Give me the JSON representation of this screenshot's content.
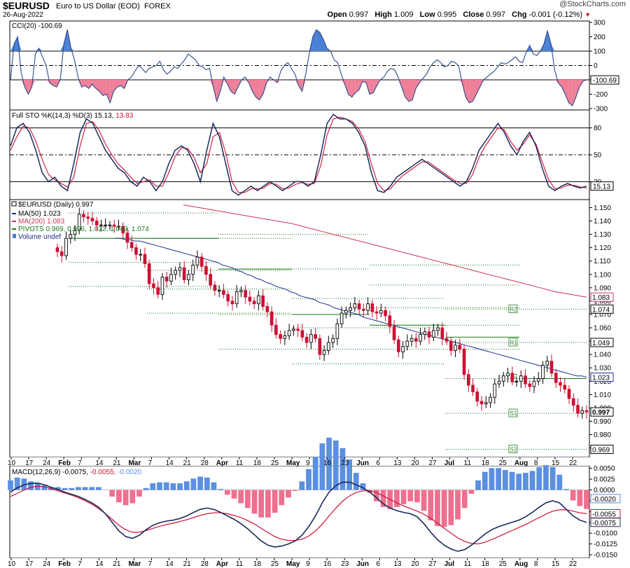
{
  "header": {
    "symbol": "$EURUSD",
    "title": "Euro to US Dollar (EOD)",
    "exchange": "FOREX",
    "date": "26-Aug-2022",
    "brand": "@StockCharts.com",
    "open_label": "Open",
    "open": "0.997",
    "high_label": "High",
    "high": "1.009",
    "low_label": "Low",
    "low": "0.995",
    "close_label": "Close",
    "close": "0.997",
    "chg_label": "Chg",
    "chg": "-0.001 (-0.12%)"
  },
  "colors": {
    "up": "#000000",
    "down": "#cc1133",
    "ma50": "#1f2f8f",
    "ma200": "#cc3355",
    "pivot": "#1e7a1e",
    "cci_pos": "#4a7fd4",
    "cci_neg": "#ef7f99",
    "hist_pos": "#5b8fe0",
    "hist_neg": "#ef6f8f",
    "macd": "#1b2a5a",
    "signal": "#cc1133"
  },
  "chart_data": [
    {
      "type": "line",
      "panel": "CCI",
      "legend": "CCI(20) -100.69",
      "yticks": [
        300,
        200,
        100,
        0,
        -100,
        -200,
        -300
      ],
      "ylim": [
        -310,
        310
      ],
      "levels": [
        100,
        0,
        -100
      ],
      "last_value_label": "-100.69",
      "values": [
        -100,
        150,
        200,
        -50,
        -150,
        -200,
        -150,
        80,
        120,
        60,
        0,
        -120,
        -140,
        -150,
        -100,
        150,
        250,
        120,
        40,
        -80,
        -150,
        -140,
        -160,
        -130,
        -160,
        -180,
        -210,
        -200,
        -260,
        -180,
        -150,
        -140,
        -160,
        -100,
        -80,
        -40,
        0,
        -20,
        -50,
        -20,
        -10,
        0,
        30,
        -30,
        -60,
        -40,
        -10,
        -20,
        10,
        40,
        80,
        60,
        40,
        0,
        -10,
        -30,
        -20,
        -150,
        -250,
        -180,
        -80,
        -130,
        -180,
        -200,
        -150,
        -100,
        -80,
        -120,
        -180,
        -220,
        -240,
        -200,
        -120,
        -80,
        -100,
        -120,
        -40,
        0,
        20,
        -20,
        -60,
        -140,
        -180,
        -60,
        80,
        200,
        250,
        230,
        180,
        120,
        100,
        40,
        20,
        -60,
        -130,
        -200,
        -220,
        -190,
        -170,
        -110,
        -120,
        -200,
        -190,
        -140,
        -100,
        -80,
        -40,
        -20,
        -30,
        -80,
        -150,
        -220,
        -250,
        -240,
        -160,
        -120,
        -90,
        -60,
        -10,
        20,
        40,
        20,
        -10,
        0,
        30,
        20,
        0,
        -120,
        -220,
        -260,
        -250,
        -200,
        -150,
        -100,
        -80,
        -60,
        -40,
        -10,
        20,
        10,
        20,
        40,
        60,
        30,
        20,
        90,
        140,
        80,
        70,
        100,
        150,
        240,
        150,
        -30,
        -120,
        -150,
        -200,
        -260,
        -280,
        -220,
        -150,
        -110,
        -100
      ]
    },
    {
      "type": "line",
      "panel": "Full STO",
      "legend_k": "Full STO %K(14,3)",
      "legend_d": "%D(3)",
      "legend_k_value": "15.13",
      "legend_d_value": "13.83",
      "yticks": [
        80,
        50,
        20
      ],
      "ylim": [
        0,
        100
      ],
      "levels": [
        80,
        50,
        20
      ],
      "last_value_label": "15.13",
      "k": [
        60,
        80,
        85,
        75,
        55,
        30,
        20,
        25,
        15,
        10,
        40,
        75,
        90,
        85,
        70,
        55,
        45,
        35,
        30,
        20,
        15,
        25,
        20,
        10,
        20,
        40,
        55,
        60,
        55,
        40,
        20,
        55,
        85,
        70,
        40,
        10,
        5,
        10,
        15,
        10,
        15,
        20,
        15,
        10,
        15,
        20,
        20,
        15,
        20,
        50,
        85,
        95,
        90,
        90,
        85,
        75,
        60,
        30,
        10,
        8,
        15,
        25,
        30,
        35,
        40,
        45,
        40,
        35,
        30,
        25,
        20,
        15,
        20,
        35,
        55,
        65,
        75,
        85,
        75,
        60,
        50,
        65,
        75,
        60,
        35,
        15,
        10,
        15,
        18,
        15,
        13,
        15
      ],
      "d": [
        55,
        70,
        82,
        80,
        65,
        45,
        28,
        22,
        18,
        14,
        25,
        60,
        85,
        87,
        77,
        62,
        50,
        40,
        33,
        25,
        18,
        20,
        22,
        15,
        15,
        30,
        48,
        58,
        57,
        47,
        30,
        40,
        70,
        75,
        52,
        20,
        8,
        8,
        12,
        12,
        13,
        18,
        17,
        12,
        13,
        17,
        19,
        17,
        18,
        38,
        72,
        90,
        92,
        90,
        87,
        79,
        65,
        40,
        18,
        10,
        12,
        20,
        27,
        32,
        37,
        42,
        42,
        37,
        32,
        27,
        22,
        18,
        18,
        28,
        47,
        60,
        70,
        80,
        78,
        65,
        55,
        62,
        72,
        62,
        42,
        22,
        12,
        13,
        16,
        16,
        14,
        13
      ]
    },
    {
      "type": "candlestick",
      "panel": "Price",
      "legend": "$EURUSD (Daily) 0.997",
      "ma50_label": "MA(50) 1.023",
      "ma200_label": "MA(200) 1.083",
      "pivots_label": "PIVOTS 0.969, 0.996, 1.022, 1.049, 1.074",
      "volume_label": "Volume undef",
      "yticks": [
        1.15,
        1.14,
        1.13,
        1.12,
        1.11,
        1.1,
        1.09,
        1.08,
        1.07,
        1.06,
        1.05,
        1.04,
        1.03,
        1.02,
        1.01,
        1.0,
        0.99,
        0.98,
        0.97
      ],
      "ytick_labels": [
        "1.150",
        "1.140",
        "1.130",
        "1.120",
        "1.110",
        "1.100",
        "1.090",
        "1.080",
        "1.070",
        "1.060",
        "1.050",
        "1.040",
        "1.030",
        "1.020",
        "1.010",
        "1.000",
        "0.990",
        "0.980",
        "0.970"
      ],
      "ylim": [
        0.963,
        1.156
      ],
      "last_labels": [
        {
          "text": "1.083",
          "value": 1.083,
          "kind": "ma200"
        },
        {
          "text": "1.074",
          "value": 1.074,
          "kind": "plain"
        },
        {
          "text": "1.049",
          "value": 1.049,
          "kind": "plain"
        },
        {
          "text": "1.023",
          "value": 1.023,
          "kind": "ma50"
        },
        {
          "text": "0.997",
          "value": 0.997,
          "kind": "bold"
        },
        {
          "text": "0.969",
          "value": 0.969,
          "kind": "plain"
        }
      ],
      "pivot_levels": [
        {
          "name": "R2",
          "value": 1.074
        },
        {
          "name": "R1",
          "value": 1.049
        },
        {
          "name": "P",
          "value": 1.022
        },
        {
          "name": "S1",
          "value": 0.996
        },
        {
          "name": "S2",
          "value": 0.969
        }
      ],
      "close": [
        1.117,
        1.114,
        1.127,
        1.13,
        1.133,
        1.145,
        1.143,
        1.142,
        1.14,
        1.137,
        1.137,
        1.137,
        1.137,
        1.136,
        1.136,
        1.131,
        1.124,
        1.12,
        1.115,
        1.115,
        1.108,
        1.093,
        1.09,
        1.085,
        1.098,
        1.095,
        1.1,
        1.103,
        1.105,
        1.096,
        1.1,
        1.107,
        1.113,
        1.106,
        1.1,
        1.092,
        1.088,
        1.088,
        1.085,
        1.08,
        1.078,
        1.087,
        1.088,
        1.083,
        1.08,
        1.078,
        1.084,
        1.076,
        1.072,
        1.062,
        1.055,
        1.052,
        1.054,
        1.058,
        1.059,
        1.058,
        1.053,
        1.049,
        1.055,
        1.052,
        1.04,
        1.043,
        1.049,
        1.052,
        1.063,
        1.071,
        1.073,
        1.075,
        1.078,
        1.074,
        1.073,
        1.078,
        1.072,
        1.071,
        1.073,
        1.069,
        1.061,
        1.051,
        1.042,
        1.046,
        1.05,
        1.052,
        1.05,
        1.055,
        1.057,
        1.053,
        1.058,
        1.06,
        1.052,
        1.05,
        1.043,
        1.047,
        1.044,
        1.025,
        1.017,
        1.012,
        1.005,
        1.003,
        1.004,
        1.008,
        1.018,
        1.02,
        1.024,
        1.026,
        1.02,
        1.02,
        1.024,
        1.018,
        1.016,
        1.02,
        1.022,
        1.032,
        1.035,
        1.026,
        1.019,
        1.017,
        1.014,
        1.007,
        1.002,
        0.996,
        0.998,
        0.997
      ],
      "ma50": [
        1.127,
        1.127,
        1.126,
        1.126,
        1.125,
        1.125,
        1.124,
        1.123,
        1.122,
        1.121,
        1.12,
        1.119,
        1.118,
        1.117,
        1.116,
        1.115,
        1.114,
        1.113,
        1.112,
        1.111,
        1.11,
        1.109,
        1.107,
        1.106,
        1.105,
        1.103,
        1.102,
        1.1,
        1.099,
        1.097,
        1.096,
        1.094,
        1.093,
        1.091,
        1.09,
        1.089,
        1.087,
        1.086,
        1.084,
        1.083,
        1.082,
        1.081,
        1.079,
        1.078,
        1.077,
        1.075,
        1.074,
        1.073,
        1.072,
        1.071,
        1.07,
        1.068,
        1.067,
        1.066,
        1.065,
        1.064,
        1.063,
        1.062,
        1.061,
        1.06,
        1.059,
        1.058,
        1.057,
        1.056,
        1.055,
        1.054,
        1.053,
        1.052,
        1.051,
        1.05,
        1.049,
        1.048,
        1.047,
        1.046,
        1.045,
        1.044,
        1.043,
        1.042,
        1.041,
        1.04,
        1.039,
        1.038,
        1.037,
        1.036,
        1.035,
        1.034,
        1.033,
        1.032,
        1.031,
        1.03,
        1.029,
        1.028,
        1.027,
        1.026,
        1.025,
        1.024,
        1.024,
        1.023
      ],
      "ma200": [
        1.152,
        1.15,
        1.148,
        1.146,
        1.144,
        1.142,
        1.14,
        1.138,
        1.135,
        1.132,
        1.129,
        1.126,
        1.123,
        1.12,
        1.117,
        1.114,
        1.111,
        1.108,
        1.105,
        1.102,
        1.099,
        1.096,
        1.093,
        1.09,
        1.087,
        1.085,
        1.083
      ]
    },
    {
      "type": "line",
      "panel": "MACD",
      "legend_macd": "MACD(12,26,9) -0.0075",
      "legend_signal": "-0.0055",
      "legend_hist": "-0.0020",
      "yticks": [
        0.005,
        0.0025,
        0.0,
        -0.0025,
        -0.005,
        -0.0075,
        -0.01,
        -0.0125,
        -0.015
      ],
      "ytick_labels": [
        "0.0050",
        "0.0025",
        "0.0000",
        "-0.0025",
        "-0.0050",
        "-0.0075",
        "-0.0100",
        "-0.0125",
        "-0.0150"
      ],
      "ylim": [
        -0.0158,
        0.0056
      ],
      "last_labels": [
        {
          "text": "-0.0020",
          "value": -0.002,
          "kind": "hist"
        },
        {
          "text": "-0.0055",
          "value": -0.0055,
          "kind": "signal"
        },
        {
          "text": "-0.0075",
          "value": -0.0075,
          "kind": "macd"
        }
      ],
      "macd": [
        -0.0005,
        0.0005,
        0.0012,
        0.0015,
        0.0016,
        0.0012,
        0.0006,
        0.0001,
        -0.0005,
        -0.001,
        -0.0015,
        -0.0022,
        -0.003,
        -0.004,
        -0.0055,
        -0.0075,
        -0.0095,
        -0.0108,
        -0.0112,
        -0.0105,
        -0.0092,
        -0.0082,
        -0.0076,
        -0.0072,
        -0.007,
        -0.0066,
        -0.006,
        -0.0052,
        -0.0045,
        -0.0042,
        -0.0045,
        -0.0052,
        -0.006,
        -0.0068,
        -0.0078,
        -0.009,
        -0.0104,
        -0.0118,
        -0.0128,
        -0.0132,
        -0.013,
        -0.0125,
        -0.0118,
        -0.0105,
        -0.0085,
        -0.006,
        -0.003,
        -0.0005,
        0.001,
        0.0018,
        0.0018,
        0.0012,
        0.0005,
        -0.0005,
        -0.0018,
        -0.0032,
        -0.0042,
        -0.0048,
        -0.0052,
        -0.0055,
        -0.0062,
        -0.0078,
        -0.0098,
        -0.0115,
        -0.0128,
        -0.0137,
        -0.0142,
        -0.0138,
        -0.0128,
        -0.0115,
        -0.0102,
        -0.0092,
        -0.0085,
        -0.008,
        -0.0075,
        -0.007,
        -0.0062,
        -0.0052,
        -0.004,
        -0.003,
        -0.0025,
        -0.003,
        -0.0045,
        -0.006,
        -0.007,
        -0.0075
      ],
      "signal": [
        -0.0015,
        -0.0008,
        0.0,
        0.0006,
        0.0009,
        0.0007,
        0.0003,
        -0.0002,
        -0.0007,
        -0.0012,
        -0.0018,
        -0.0025,
        -0.0033,
        -0.0043,
        -0.0055,
        -0.0068,
        -0.0082,
        -0.0092,
        -0.0098,
        -0.0098,
        -0.0094,
        -0.0089,
        -0.0084,
        -0.008,
        -0.0077,
        -0.0073,
        -0.0069,
        -0.0064,
        -0.0059,
        -0.0055,
        -0.0053,
        -0.0053,
        -0.0055,
        -0.0059,
        -0.0064,
        -0.0071,
        -0.0079,
        -0.0089,
        -0.0099,
        -0.0108,
        -0.0114,
        -0.0117,
        -0.0117,
        -0.0114,
        -0.0107,
        -0.0095,
        -0.0079,
        -0.006,
        -0.0042,
        -0.0026,
        -0.0014,
        -0.0006,
        -0.0002,
        -0.0002,
        -0.0006,
        -0.0014,
        -0.0022,
        -0.003,
        -0.0037,
        -0.0043,
        -0.0049,
        -0.0056,
        -0.0066,
        -0.0077,
        -0.0089,
        -0.01,
        -0.0111,
        -0.0119,
        -0.0124,
        -0.0125,
        -0.0121,
        -0.0115,
        -0.0108,
        -0.0101,
        -0.0094,
        -0.0087,
        -0.008,
        -0.0072,
        -0.0064,
        -0.0056,
        -0.0049,
        -0.0046,
        -0.0046,
        -0.0049,
        -0.0053,
        -0.0055
      ]
    }
  ],
  "x_axis_labels": [
    "10",
    "17",
    "24",
    "Feb",
    "7",
    "14",
    "21",
    "Mar",
    "7",
    "14",
    "21",
    "28",
    "Apr",
    "11",
    "18",
    "25",
    "May",
    "9",
    "16",
    "23",
    "Jun",
    "6",
    "13",
    "20",
    "27",
    "Jul",
    "11",
    "18",
    "25",
    "Aug",
    "8",
    "15",
    "22"
  ],
  "x_axis_bold": [
    "Feb",
    "Mar",
    "Apr",
    "May",
    "Jun",
    "Jul",
    "Aug"
  ]
}
